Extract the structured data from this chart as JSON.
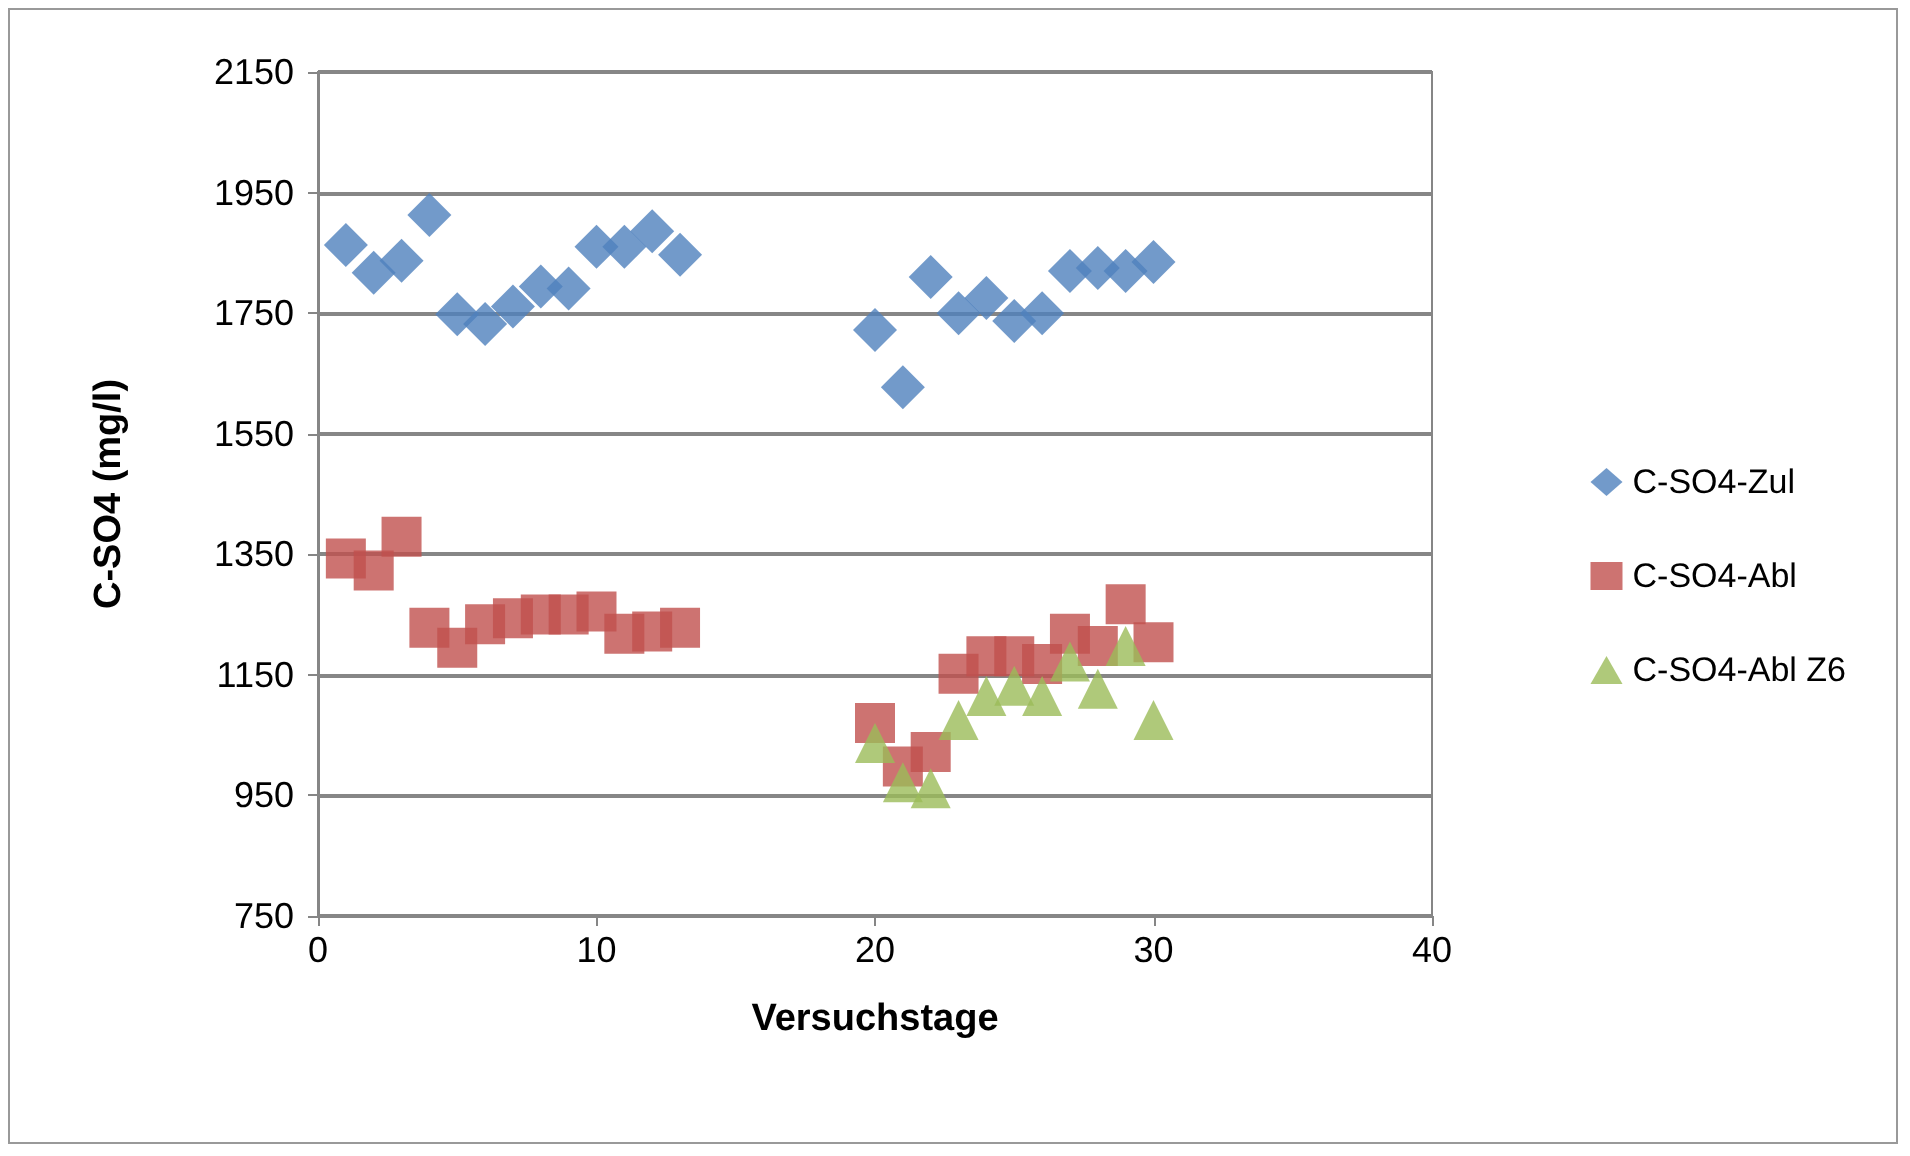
{
  "chart_data": {
    "type": "scatter",
    "xlabel": "Versuchstage",
    "ylabel": "C-SO4 (mg/l)",
    "xlim": [
      0,
      40
    ],
    "xticks": [
      0,
      10,
      20,
      30,
      40
    ],
    "ylim": [
      750,
      2150
    ],
    "yticks": [
      750,
      950,
      1150,
      1350,
      1550,
      1750,
      1950,
      2150
    ],
    "grid": "y",
    "legend": "right",
    "series": [
      {
        "name": "C-SO4-Zul",
        "color": "#4f81bd",
        "marker": "diamond",
        "x": [
          1,
          2,
          3,
          4,
          5,
          6,
          7,
          8,
          9,
          10,
          11,
          12,
          13,
          20,
          21,
          22,
          23,
          24,
          25,
          26,
          27,
          28,
          29,
          30
        ],
        "values": [
          1863,
          1817,
          1837,
          1913,
          1748,
          1732,
          1761,
          1794,
          1791,
          1860,
          1860,
          1886,
          1847,
          1722,
          1627,
          1810,
          1750,
          1775,
          1737,
          1750,
          1820,
          1825,
          1820,
          1835
        ]
      },
      {
        "name": "C-SO4-Abl",
        "color": "#c0504d",
        "marker": "square",
        "x": [
          1,
          2,
          3,
          4,
          5,
          6,
          7,
          8,
          9,
          10,
          11,
          12,
          13,
          20,
          21,
          22,
          23,
          24,
          25,
          26,
          27,
          28,
          29,
          30
        ],
        "values": [
          1343,
          1323,
          1379,
          1228,
          1195,
          1234,
          1244,
          1250,
          1250,
          1255,
          1218,
          1222,
          1228,
          1070,
          998,
          1022,
          1152,
          1181,
          1181,
          1168,
          1218,
          1198,
          1267,
          1204
        ]
      },
      {
        "name": "C-SO4-Abl Z6",
        "color": "#9bbb59",
        "marker": "triangle",
        "x": [
          20,
          21,
          22,
          23,
          24,
          25,
          26,
          27,
          28,
          29,
          30
        ],
        "values": [
          1037,
          972,
          962,
          1075,
          1115,
          1132,
          1115,
          1172,
          1127,
          1198,
          1075
        ]
      }
    ]
  }
}
